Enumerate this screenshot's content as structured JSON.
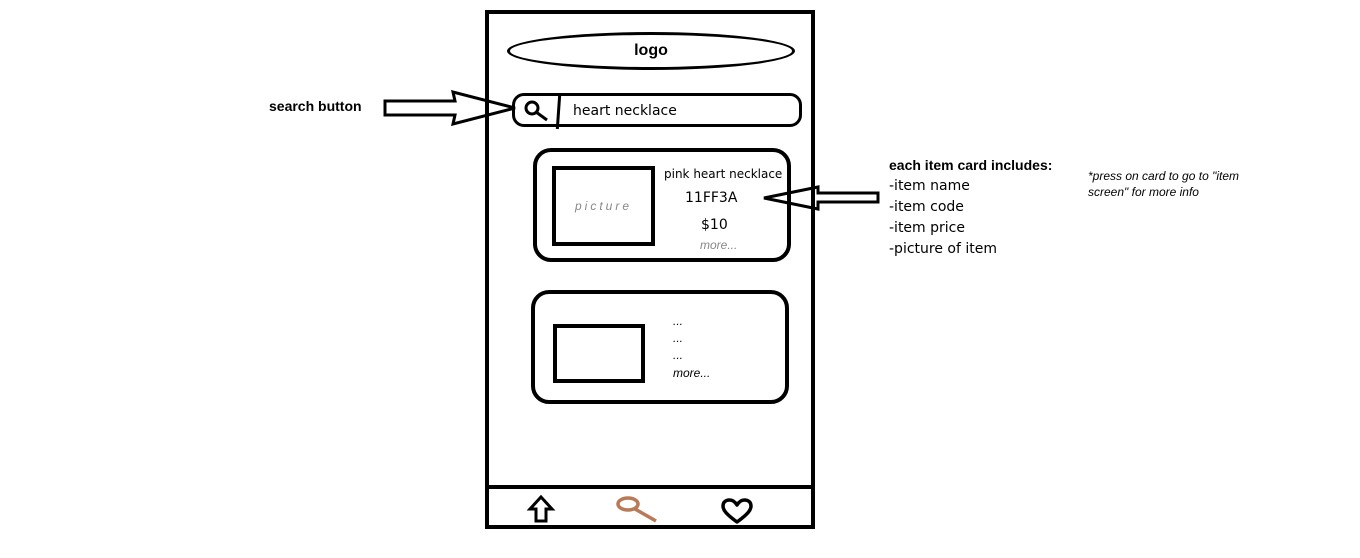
{
  "header": {
    "logo_text": "logo"
  },
  "search": {
    "query": "heart necklace"
  },
  "cards": [
    {
      "picture_label": "picture",
      "name": "pink heart necklace",
      "code": "11FF3A",
      "price": "$10",
      "more": "more..."
    },
    {
      "lines": [
        "...",
        "...",
        "..."
      ],
      "more": "more..."
    }
  ],
  "tabbar": {
    "items": [
      {
        "icon": "home-up-arrow-icon"
      },
      {
        "icon": "search-icon",
        "color": "#b97a57"
      },
      {
        "icon": "heart-icon"
      }
    ]
  },
  "annotations": {
    "search_button_label": "search button",
    "card_title": "each item card includes:",
    "card_items": [
      "-item name",
      "-item code",
      "-item price",
      "-picture of item"
    ],
    "hint": "*press on card to go to \"item screen\" for more info"
  }
}
